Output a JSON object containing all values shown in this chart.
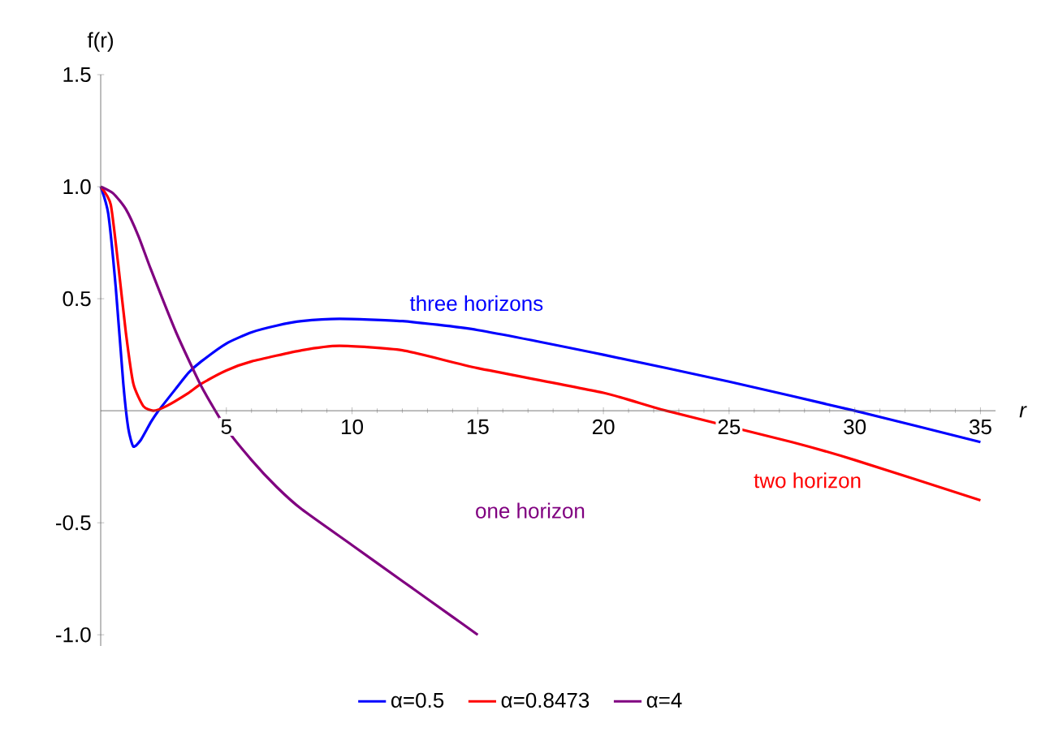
{
  "chart_data": {
    "type": "line",
    "xlabel": "r",
    "ylabel": "f(r)",
    "xlim": [
      0,
      35.6
    ],
    "ylim": [
      -1.05,
      1.5
    ],
    "xticks": [
      5,
      10,
      15,
      20,
      25,
      30,
      35
    ],
    "yticks": [
      {
        "value": -1.0,
        "label": "-1.0"
      },
      {
        "value": -0.5,
        "label": "-0.5"
      },
      {
        "value": 0.5,
        "label": "0.5"
      },
      {
        "value": 1.0,
        "label": "1.0"
      },
      {
        "value": 1.5,
        "label": "1.5"
      }
    ],
    "legend": "bottom",
    "grid": false,
    "marker": "none",
    "line_style": "solid",
    "series": [
      {
        "name": "α=0.5",
        "color": "#0000ff",
        "x": [
          0,
          0.3,
          0.6,
          0.9,
          1.1,
          1.3,
          1.6,
          2.0,
          2.3,
          3,
          3.5,
          4,
          5,
          6,
          7,
          8,
          9.5,
          12,
          15,
          20,
          25,
          30,
          35
        ],
        "values": [
          1,
          0.88,
          0.55,
          0.12,
          -0.08,
          -0.16,
          -0.13,
          -0.05,
          0,
          0.1,
          0.17,
          0.22,
          0.3,
          0.35,
          0.38,
          0.4,
          0.41,
          0.4,
          0.36,
          0.25,
          0.13,
          0,
          -0.14
        ]
      },
      {
        "name": "α=0.8473",
        "color": "#ff0000",
        "x": [
          0,
          0.4,
          0.7,
          1.0,
          1.3,
          1.7,
          2.1,
          2.6,
          3.5,
          4,
          5,
          6,
          8,
          9.5,
          12,
          15,
          20,
          22.5,
          27.5,
          30,
          35
        ],
        "values": [
          1,
          0.92,
          0.65,
          0.35,
          0.12,
          0.02,
          0,
          0.02,
          0.08,
          0.12,
          0.18,
          0.22,
          0.27,
          0.29,
          0.27,
          0.19,
          0.08,
          0,
          -0.14,
          -0.22,
          -0.4
        ]
      },
      {
        "name": "α=4",
        "color": "#800080",
        "x": [
          0,
          0.5,
          1,
          1.5,
          2,
          3,
          4,
          5,
          6,
          7,
          8,
          10,
          12,
          14,
          15
        ],
        "values": [
          1,
          0.97,
          0.9,
          0.78,
          0.63,
          0.35,
          0.11,
          -0.08,
          -0.22,
          -0.34,
          -0.44,
          -0.6,
          -0.76,
          -0.92,
          -1
        ]
      }
    ],
    "annotations": [
      "three horizons",
      "two horizon",
      "one horizon"
    ]
  }
}
